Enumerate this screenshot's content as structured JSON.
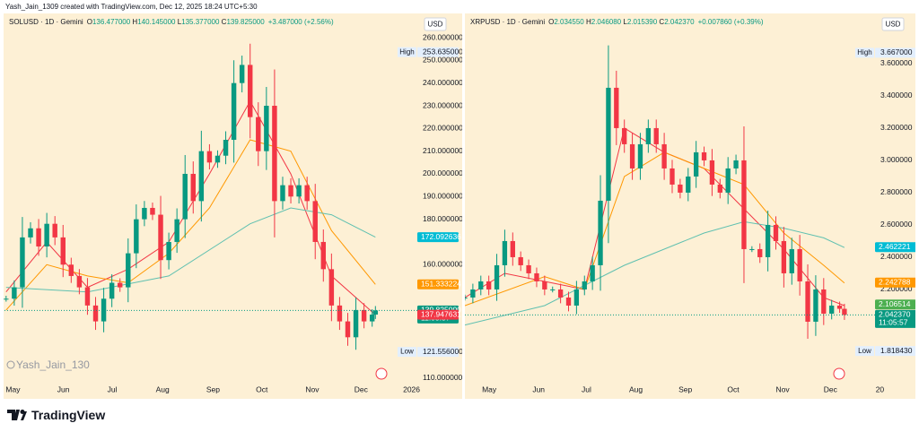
{
  "header": {
    "text": "Yash_Jain_1309 created with TradingView.com, Dec 12, 2025 18:24 UTC+5:30"
  },
  "footer": {
    "brand": "TradingView"
  },
  "chart_data": [
    {
      "type": "candlestick",
      "symbol": "SOLUSD · 1D · Gemini",
      "ohlc": [
        {
          "key": "O",
          "text": "136.477000"
        },
        {
          "key": "H",
          "text": "140.145000"
        },
        {
          "key": "L",
          "text": "135.377000"
        },
        {
          "key": "C",
          "text": "139.825000"
        }
      ],
      "change": "+3.487000 (+2.56%)",
      "currency": "USD",
      "watermark": "Yash_Jain_130",
      "xlim": [
        -3,
        248
      ],
      "ylim": [
        106.8,
        268.7
      ],
      "xticks": [
        {
          "value": 0,
          "label": "May"
        },
        {
          "value": 31,
          "label": "Jun"
        },
        {
          "value": 61,
          "label": "Jul"
        },
        {
          "value": 92,
          "label": "Aug"
        },
        {
          "value": 123,
          "label": "Sep"
        },
        {
          "value": 153,
          "label": "Oct"
        },
        {
          "value": 184,
          "label": "Nov"
        },
        {
          "value": 214,
          "label": "Dec"
        },
        {
          "value": 245,
          "label": "2026"
        }
      ],
      "yticks": [
        {
          "value": 110,
          "label": "110.000000"
        },
        {
          "value": 160,
          "label": "160.000000"
        },
        {
          "value": 180,
          "label": "180.000000"
        },
        {
          "value": 190,
          "label": "190.000000"
        },
        {
          "value": 200,
          "label": "200.000000"
        },
        {
          "value": 210,
          "label": "210.000000"
        },
        {
          "value": 220,
          "label": "220.000000"
        },
        {
          "value": 230,
          "label": "230.000000"
        },
        {
          "value": 240,
          "label": "240.000000"
        },
        {
          "value": 250,
          "label": "250.000000"
        },
        {
          "value": 260,
          "label": "260.000000"
        }
      ],
      "candles": {
        "x": [
          -2,
          3,
          8,
          13,
          18,
          23,
          28,
          33,
          38,
          43,
          48,
          53,
          58,
          63,
          68,
          73,
          78,
          83,
          88,
          93,
          98,
          103,
          108,
          113,
          118,
          123,
          128,
          133,
          138,
          143,
          148,
          153,
          158,
          163,
          168,
          173,
          178,
          183,
          188,
          193,
          198,
          203,
          208,
          213,
          218,
          223,
          225
        ],
        "close": [
          145,
          150,
          172,
          176,
          168,
          178,
          172,
          160,
          155,
          150,
          142,
          135,
          145,
          152,
          150,
          165,
          180,
          185,
          182,
          162,
          170,
          180,
          200,
          188,
          210,
          205,
          208,
          215,
          240,
          248,
          225,
          210,
          230,
          188,
          195,
          190,
          195,
          188,
          170,
          158,
          142,
          135,
          128,
          140,
          135,
          138,
          139.825
        ],
        "up_color": "#089981",
        "down_color": "#f23645"
      },
      "ma": [
        {
          "color": "#f23645",
          "x": [
            -2,
            23,
            48,
            73,
            98,
            123,
            148,
            173,
            198,
            225
          ],
          "values": [
            148,
            170,
            150,
            158,
            170,
            200,
            232,
            200,
            155,
            137.9
          ]
        },
        {
          "color": "#ff9800",
          "x": [
            -2,
            23,
            48,
            73,
            98,
            123,
            148,
            173,
            198,
            225
          ],
          "values": [
            140,
            160,
            155,
            152,
            165,
            185,
            215,
            210,
            175,
            151.3
          ]
        },
        {
          "color": "#5fc0b0",
          "x": [
            -2,
            48,
            98,
            148,
            173,
            198,
            225
          ],
          "values": [
            150,
            148,
            155,
            178,
            185,
            182,
            172.1
          ]
        }
      ],
      "high": {
        "name": "High",
        "value": 253.635,
        "label": "253.635000"
      },
      "low": {
        "name": "Low",
        "value": 121.556,
        "label": "121.556000"
      },
      "tags": [
        {
          "value": 172.092636,
          "label": "172.092636",
          "color": "#00bcd4"
        },
        {
          "value": 151.333224,
          "label": "151.333224",
          "color": "#ff9800"
        },
        {
          "value": 139.825,
          "label": "139.825000",
          "color": "#089981",
          "sub": "11:05:57"
        },
        {
          "value": 137.947631,
          "label": "137.947631",
          "color": "#f23645"
        }
      ]
    },
    {
      "type": "candlestick",
      "symbol": "XRPUSD · 1D · Gemini",
      "ohlc": [
        {
          "key": "O",
          "text": "2.034550"
        },
        {
          "key": "H",
          "text": "2.046080"
        },
        {
          "key": "L",
          "text": "2.015390"
        },
        {
          "key": "C",
          "text": "2.042370"
        }
      ],
      "change": "+0.007860 (+0.39%)",
      "currency": "USD",
      "xlim": [
        -13,
        247
      ],
      "ylim": [
        1.622,
        3.883
      ],
      "xticks": [
        {
          "value": 0,
          "label": "May"
        },
        {
          "value": 31,
          "label": "Jun"
        },
        {
          "value": 61,
          "label": "Jul"
        },
        {
          "value": 92,
          "label": "Aug"
        },
        {
          "value": 123,
          "label": "Sep"
        },
        {
          "value": 153,
          "label": "Oct"
        },
        {
          "value": 184,
          "label": "Nov"
        },
        {
          "value": 214,
          "label": "Dec"
        },
        {
          "value": 245,
          "label": "20"
        }
      ],
      "yticks": [
        {
          "value": 2.2,
          "label": "2.200000"
        },
        {
          "value": 2.4,
          "label": "2.400000"
        },
        {
          "value": 2.6,
          "label": "2.600000"
        },
        {
          "value": 2.8,
          "label": "2.800000"
        },
        {
          "value": 3,
          "label": "3.000000"
        },
        {
          "value": 3.2,
          "label": "3.200000"
        },
        {
          "value": 3.4,
          "label": "3.400000"
        },
        {
          "value": 3.6,
          "label": "3.600000"
        }
      ],
      "candles": {
        "x": [
          -13,
          -8,
          -3,
          2,
          7,
          12,
          17,
          22,
          27,
          32,
          37,
          42,
          47,
          52,
          57,
          62,
          67,
          72,
          77,
          82,
          87,
          92,
          97,
          102,
          107,
          112,
          117,
          122,
          127,
          132,
          137,
          142,
          147,
          152,
          157,
          162,
          167,
          172,
          177,
          182,
          187,
          192,
          197,
          202,
          207,
          212,
          217,
          222,
          225
        ],
        "close": [
          2.15,
          2.2,
          2.25,
          2.2,
          2.35,
          2.5,
          2.4,
          2.35,
          2.3,
          2.25,
          2.2,
          2.2,
          2.15,
          2.1,
          2.2,
          2.25,
          2.35,
          2.75,
          3.45,
          3.2,
          3.1,
          2.95,
          3.1,
          3.2,
          3.1,
          2.95,
          2.85,
          2.8,
          2.9,
          3.05,
          3.0,
          2.85,
          2.8,
          2.95,
          3.0,
          2.45,
          2.45,
          2.4,
          2.6,
          2.5,
          2.3,
          2.45,
          2.25,
          2.0,
          2.2,
          2.05,
          2.1,
          2.08,
          2.04237
        ],
        "up_color": "#089981",
        "down_color": "#f23645"
      },
      "ma": [
        {
          "color": "#f23645",
          "x": [
            -13,
            12,
            37,
            62,
            87,
            112,
            137,
            162,
            187,
            212,
            225
          ],
          "values": [
            2.15,
            2.3,
            2.25,
            2.2,
            3.2,
            3.05,
            2.95,
            2.7,
            2.45,
            2.15,
            2.1
          ]
        },
        {
          "color": "#ff9800",
          "x": [
            -13,
            37,
            62,
            87,
            112,
            137,
            162,
            187,
            212,
            225
          ],
          "values": [
            2.1,
            2.28,
            2.2,
            2.9,
            3.05,
            2.95,
            2.85,
            2.55,
            2.35,
            2.24
          ]
        },
        {
          "color": "#5fc0b0",
          "x": [
            -13,
            37,
            87,
            137,
            162,
            187,
            212,
            225
          ],
          "values": [
            1.98,
            2.1,
            2.35,
            2.55,
            2.62,
            2.58,
            2.52,
            2.46
          ]
        }
      ],
      "high": {
        "name": "High",
        "value": 3.667,
        "label": "3.667000"
      },
      "low": {
        "name": "Low",
        "value": 1.81843,
        "label": "1.818430"
      },
      "tags": [
        {
          "value": 2.462221,
          "label": "2.462221",
          "color": "#00bcd4"
        },
        {
          "value": 2.242788,
          "label": "2.242788",
          "color": "#ff9800"
        },
        {
          "value": 2.106514,
          "label": "2.106514",
          "color": "#4caf50"
        },
        {
          "value": 2.04237,
          "label": "2.042370",
          "color": "#089981",
          "sub": "11:05:57"
        }
      ]
    }
  ]
}
